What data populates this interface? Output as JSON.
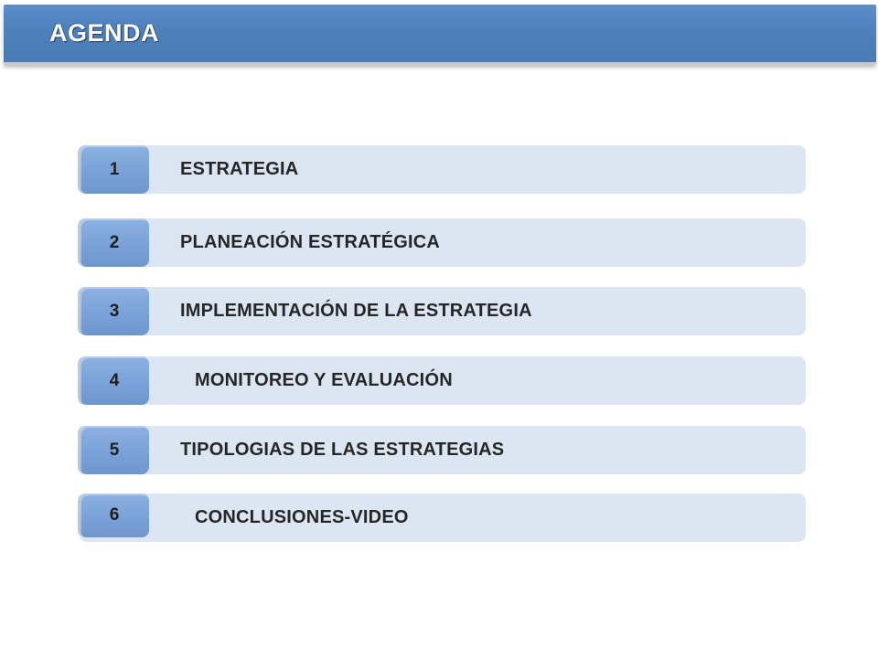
{
  "header": {
    "title": "AGENDA"
  },
  "agenda": {
    "items": [
      {
        "number": "1",
        "label": "ESTRATEGIA"
      },
      {
        "number": "2",
        "label": "PLANEACIÓN ESTRATÉGICA"
      },
      {
        "number": "3",
        "label": "IMPLEMENTACIÓN  DE LA ESTRATEGIA"
      },
      {
        "number": "4",
        "label": "MONITOREO Y EVALUACIÓN"
      },
      {
        "number": "5",
        "label": "TIPOLOGIAS DE LAS ESTRATEGIAS"
      },
      {
        "number": "6",
        "label": "CONCLUSIONES-VIDEO"
      }
    ]
  },
  "colors": {
    "title_bar": "#4f81bd",
    "item_bar": "#dce6f2",
    "number_badge": "#7ba3d8",
    "text": "#262626"
  }
}
